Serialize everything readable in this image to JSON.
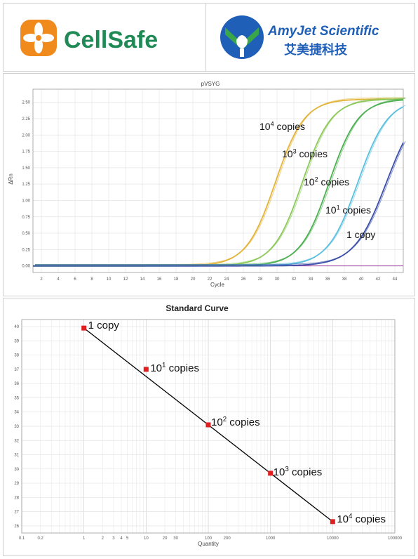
{
  "logos": {
    "left_name": "CellSafe",
    "right_name": "AmyJet Scientific",
    "right_chinese": "艾美捷科技",
    "colors": {
      "cellsafe_green": "#1f8a55",
      "cellsafe_orange": "#f08a1c",
      "amyjet_blue": "#1f5fb8",
      "amyjet_green": "#3aa64a"
    }
  },
  "chart_data": [
    {
      "type": "line",
      "title": "pVSYG",
      "xlabel": "Cycle",
      "ylabel": "ΔRn",
      "xlim": [
        1,
        45
      ],
      "ylim": [
        -0.1,
        2.7
      ],
      "xticks": [
        "2",
        "4",
        "6",
        "8",
        "10",
        "12",
        "14",
        "16",
        "18",
        "20",
        "22",
        "24",
        "26",
        "28",
        "30",
        "32",
        "34",
        "36",
        "38",
        "40",
        "42",
        "44"
      ],
      "yticks": [
        "0.00",
        "0.25",
        "0.50",
        "0.75",
        "1.00",
        "1.25",
        "1.50",
        "1.75",
        "2.00",
        "2.25",
        "2.50"
      ],
      "grid": true,
      "series": [
        {
          "label_base": "10",
          "label_exp": "4",
          "label_rest": " copies",
          "color": "#e2b43a",
          "midpoint": 29.8,
          "slope": 0.58,
          "plateau": 2.55
        },
        {
          "label_base": "10",
          "label_exp": "3",
          "label_rest": " copies",
          "color": "#8dc85a",
          "midpoint": 33.0,
          "slope": 0.58,
          "plateau": 2.55
        },
        {
          "label_base": "10",
          "label_exp": "2",
          "label_rest": " copies",
          "color": "#4caf50",
          "midpoint": 36.2,
          "slope": 0.58,
          "plateau": 2.55
        },
        {
          "label_base": "10",
          "label_exp": "1",
          "label_rest": " copies",
          "color": "#5bc0de",
          "midpoint": 39.6,
          "slope": 0.56,
          "plateau": 2.55
        },
        {
          "label_base": "",
          "label_exp": "",
          "label_rest": "1 copy",
          "color": "#3a4fa8",
          "midpoint": 43.0,
          "slope": 0.52,
          "plateau": 2.55
        }
      ],
      "threshold": {
        "value": 0.0,
        "color": "#a040a0"
      }
    },
    {
      "type": "scatter",
      "title": "Standard Curve",
      "xlabel": "Quantity",
      "ylabel": "",
      "xscale": "log",
      "xlim": [
        0.1,
        100000
      ],
      "ylim": [
        25.5,
        40.5
      ],
      "xticks": [
        {
          "v": 0.1,
          "t": "0.1"
        },
        {
          "v": 0.2,
          "t": "0.2"
        },
        {
          "v": 1,
          "t": "1"
        },
        {
          "v": 2,
          "t": "2"
        },
        {
          "v": 3,
          "t": "3"
        },
        {
          "v": 4,
          "t": "4"
        },
        {
          "v": 5,
          "t": "5"
        },
        {
          "v": 10,
          "t": "10"
        },
        {
          "v": 20,
          "t": "20"
        },
        {
          "v": 30,
          "t": "30"
        },
        {
          "v": 100,
          "t": "100"
        },
        {
          "v": 200,
          "t": "200"
        },
        {
          "v": 1000,
          "t": "1000"
        },
        {
          "v": 10000,
          "t": "10000"
        },
        {
          "v": 100000,
          "t": "100000"
        }
      ],
      "yticks": [
        "26",
        "27",
        "28",
        "29",
        "30",
        "31",
        "32",
        "33",
        "34",
        "35",
        "36",
        "37",
        "38",
        "39",
        "40"
      ],
      "grid": true,
      "points": [
        {
          "x": 1,
          "y": 39.9,
          "label_base": "",
          "label_exp": "",
          "label_rest": "1 copy"
        },
        {
          "x": 10,
          "y": 37.0,
          "label_base": "10",
          "label_exp": "1",
          "label_rest": " copies"
        },
        {
          "x": 100,
          "y": 33.1,
          "label_base": "10",
          "label_exp": "2",
          "label_rest": " copies"
        },
        {
          "x": 1000,
          "y": 29.7,
          "label_base": "10",
          "label_exp": "3",
          "label_rest": " copies"
        },
        {
          "x": 10000,
          "y": 26.3,
          "label_base": "10",
          "label_exp": "4",
          "label_rest": " copies"
        }
      ],
      "fit_line": {
        "x": [
          1,
          10000
        ],
        "y": [
          39.9,
          26.3
        ],
        "color": "#000000"
      },
      "point_color": "#e02020"
    }
  ]
}
